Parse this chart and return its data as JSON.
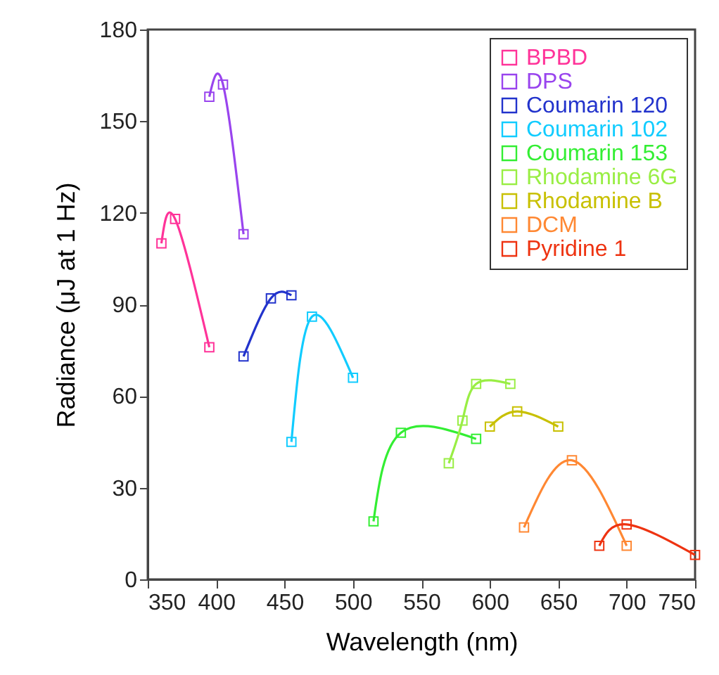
{
  "chart_data": {
    "type": "line",
    "xlabel": "Wavelength (nm)",
    "ylabel": "Radiance (μJ at 1 Hz)",
    "xlim": [
      350,
      750
    ],
    "xticks": [
      350,
      400,
      450,
      500,
      550,
      600,
      650,
      700,
      750
    ],
    "ylim": [
      0,
      180
    ],
    "yticks": [
      0,
      30,
      60,
      90,
      120,
      150,
      180
    ],
    "marker": "square",
    "line_style": "solid",
    "legend": "top right",
    "grid": false,
    "series": [
      {
        "name": "BPBD",
        "color": "#ff3399",
        "x": [
          360,
          370,
          395
        ],
        "values": [
          110,
          118,
          76
        ]
      },
      {
        "name": "DPS",
        "color": "#9944ee",
        "x": [
          395,
          405,
          420
        ],
        "values": [
          158,
          162,
          113
        ]
      },
      {
        "name": "Coumarin 120",
        "color": "#2233cc",
        "x": [
          420,
          440,
          455
        ],
        "values": [
          73,
          92,
          93
        ]
      },
      {
        "name": "Coumarin 102",
        "color": "#11ccff",
        "x": [
          455,
          470,
          500
        ],
        "values": [
          45,
          86,
          66
        ]
      },
      {
        "name": "Coumarin 153",
        "color": "#33ee33",
        "x": [
          515,
          535,
          590
        ],
        "values": [
          19,
          48,
          46
        ]
      },
      {
        "name": "Rhodamine 6G",
        "color": "#99ee44",
        "x": [
          570,
          580,
          590,
          615
        ],
        "values": [
          38,
          52,
          64,
          64
        ]
      },
      {
        "name": "Rhodamine B",
        "color": "#c8c000",
        "x": [
          600,
          620,
          650
        ],
        "values": [
          50,
          55,
          50
        ]
      },
      {
        "name": "DCM",
        "color": "#ff8833",
        "x": [
          625,
          660,
          700
        ],
        "values": [
          17,
          39,
          11
        ]
      },
      {
        "name": "Pyridine 1",
        "color": "#ee3311",
        "x": [
          680,
          700,
          750
        ],
        "values": [
          11,
          18,
          8
        ]
      }
    ]
  }
}
